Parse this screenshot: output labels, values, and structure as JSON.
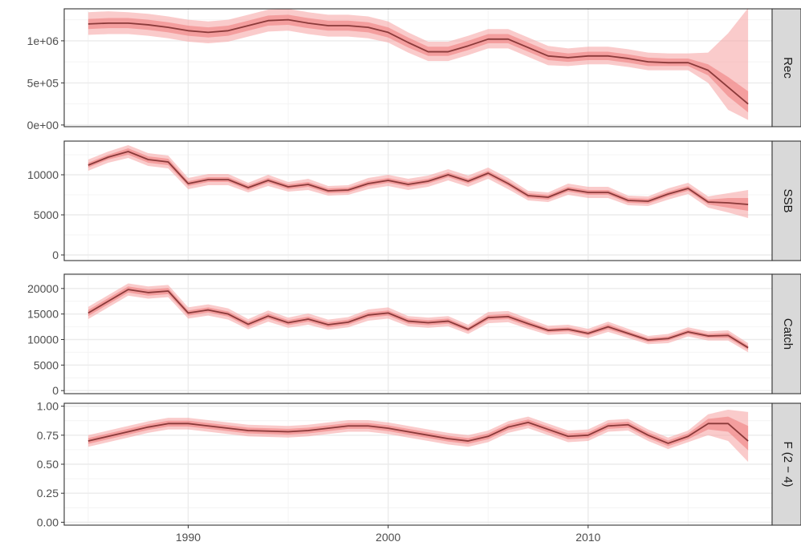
{
  "chart_data": {
    "type": "line",
    "x_ticks": [
      1990,
      2000,
      2010
    ],
    "xlim": [
      1983.8,
      2019.2
    ],
    "colors": {
      "line": "#8b3a3a",
      "ribbon_outer": "#f7a8a8",
      "ribbon_inner": "#ef7a7a",
      "grid_major": "#ebebeb",
      "grid_minor": "#f4f4f4",
      "strip_fill": "#d9d9d9",
      "border": "#333333"
    },
    "panels": [
      {
        "strip": "Rec",
        "ylim": [
          -20000,
          1380000
        ],
        "y_ticks": [
          0,
          500000,
          1000000
        ],
        "y_tick_labels": [
          "0e+00",
          "5e+05",
          "1e+06"
        ],
        "x": [
          1985,
          1986,
          1987,
          1988,
          1989,
          1990,
          1991,
          1992,
          1993,
          1994,
          1995,
          1996,
          1997,
          1998,
          1999,
          2000,
          2001,
          2002,
          2003,
          2004,
          2005,
          2006,
          2007,
          2008,
          2009,
          2010,
          2011,
          2012,
          2013,
          2014,
          2015,
          2016,
          2017,
          2018
        ],
        "y": [
          1200000,
          1210000,
          1210000,
          1190000,
          1160000,
          1120000,
          1100000,
          1120000,
          1180000,
          1240000,
          1250000,
          1210000,
          1180000,
          1180000,
          1160000,
          1100000,
          980000,
          870000,
          870000,
          940000,
          1020000,
          1020000,
          920000,
          820000,
          800000,
          820000,
          820000,
          790000,
          750000,
          740000,
          740000,
          650000,
          450000,
          250000
        ],
        "outer_lo": [
          1070000,
          1080000,
          1080000,
          1060000,
          1030000,
          990000,
          970000,
          990000,
          1050000,
          1110000,
          1120000,
          1080000,
          1050000,
          1050000,
          1030000,
          980000,
          860000,
          760000,
          760000,
          830000,
          910000,
          910000,
          810000,
          710000,
          700000,
          720000,
          720000,
          690000,
          650000,
          650000,
          650000,
          500000,
          180000,
          60000
        ],
        "outer_hi": [
          1340000,
          1350000,
          1340000,
          1320000,
          1290000,
          1250000,
          1230000,
          1250000,
          1310000,
          1370000,
          1380000,
          1340000,
          1310000,
          1310000,
          1290000,
          1230000,
          1100000,
          990000,
          990000,
          1060000,
          1140000,
          1140000,
          1040000,
          940000,
          910000,
          930000,
          930000,
          900000,
          860000,
          850000,
          850000,
          860000,
          1090000,
          1390000
        ],
        "inner_lo": [
          1140000,
          1150000,
          1150000,
          1130000,
          1100000,
          1060000,
          1040000,
          1060000,
          1120000,
          1180000,
          1190000,
          1150000,
          1120000,
          1120000,
          1100000,
          1040000,
          920000,
          820000,
          820000,
          890000,
          970000,
          970000,
          870000,
          770000,
          750000,
          770000,
          770000,
          740000,
          700000,
          700000,
          700000,
          590000,
          340000,
          150000
        ],
        "inner_hi": [
          1260000,
          1270000,
          1270000,
          1250000,
          1220000,
          1180000,
          1160000,
          1180000,
          1240000,
          1300000,
          1310000,
          1270000,
          1240000,
          1240000,
          1220000,
          1160000,
          1040000,
          930000,
          930000,
          1000000,
          1080000,
          1080000,
          980000,
          880000,
          850000,
          870000,
          870000,
          840000,
          800000,
          790000,
          790000,
          720000,
          570000,
          400000
        ]
      },
      {
        "strip": "SSB",
        "ylim": [
          -700,
          14200
        ],
        "y_ticks": [
          0,
          5000,
          10000
        ],
        "y_tick_labels": [
          "0",
          "5000",
          "10000"
        ],
        "x": [
          1985,
          1986,
          1987,
          1988,
          1989,
          1990,
          1991,
          1992,
          1993,
          1994,
          1995,
          1996,
          1997,
          1998,
          1999,
          2000,
          2001,
          2002,
          2003,
          2004,
          2005,
          2006,
          2007,
          2008,
          2009,
          2010,
          2011,
          2012,
          2013,
          2014,
          2015,
          2016,
          2017,
          2018
        ],
        "y": [
          11200,
          12200,
          12900,
          11900,
          11600,
          8900,
          9400,
          9400,
          8400,
          9300,
          8500,
          8800,
          8000,
          8100,
          8900,
          9300,
          8800,
          9200,
          10000,
          9200,
          10200,
          8900,
          7400,
          7200,
          8200,
          7800,
          7800,
          6800,
          6700,
          7600,
          8300,
          6600,
          6500,
          6300
        ],
        "outer_lo": [
          10500,
          11500,
          12100,
          11100,
          10800,
          8200,
          8700,
          8700,
          7800,
          8600,
          7900,
          8100,
          7400,
          7500,
          8200,
          8600,
          8100,
          8500,
          9300,
          8500,
          9500,
          8200,
          6800,
          6600,
          7500,
          7100,
          7100,
          6200,
          6100,
          6900,
          7600,
          5900,
          5300,
          4600
        ],
        "outer_hi": [
          11900,
          12900,
          13700,
          12700,
          12400,
          9600,
          10100,
          10100,
          9000,
          10000,
          9100,
          9500,
          8600,
          8700,
          9600,
          10000,
          9500,
          9900,
          10700,
          9900,
          10900,
          9600,
          8000,
          7800,
          8900,
          8500,
          8500,
          7400,
          7300,
          8300,
          9000,
          7300,
          7700,
          8100
        ],
        "inner_lo": [
          10900,
          11900,
          12500,
          11500,
          11200,
          8600,
          9100,
          9100,
          8100,
          9000,
          8200,
          8500,
          7700,
          7800,
          8600,
          9000,
          8500,
          8900,
          9700,
          8900,
          9900,
          8600,
          7100,
          6900,
          7900,
          7500,
          7500,
          6500,
          6400,
          7300,
          8000,
          6300,
          5900,
          5500
        ],
        "inner_hi": [
          11500,
          12500,
          13300,
          12300,
          12000,
          9200,
          9700,
          9700,
          8700,
          9600,
          8800,
          9100,
          8300,
          8400,
          9200,
          9600,
          9100,
          9500,
          10300,
          9500,
          10500,
          9200,
          7700,
          7500,
          8500,
          8100,
          8100,
          7100,
          7000,
          7900,
          8600,
          6900,
          7100,
          7100
        ]
      },
      {
        "strip": "Catch",
        "ylim": [
          -600,
          22800
        ],
        "y_ticks": [
          0,
          5000,
          10000,
          15000,
          20000
        ],
        "y_tick_labels": [
          "0",
          "5000",
          "10000",
          "15000",
          "20000"
        ],
        "x": [
          1985,
          1986,
          1987,
          1988,
          1989,
          1990,
          1991,
          1992,
          1993,
          1994,
          1995,
          1996,
          1997,
          1998,
          1999,
          2000,
          2001,
          2002,
          2003,
          2004,
          2005,
          2006,
          2007,
          2008,
          2009,
          2010,
          2011,
          2012,
          2013,
          2014,
          2015,
          2016,
          2017,
          2018
        ],
        "y": [
          15200,
          17500,
          19800,
          19200,
          19500,
          15200,
          15800,
          15000,
          13000,
          14600,
          13300,
          14000,
          12900,
          13400,
          14800,
          15200,
          13600,
          13300,
          13600,
          12000,
          14300,
          14500,
          13100,
          11800,
          12000,
          11200,
          12500,
          11200,
          9900,
          10200,
          11500,
          10700,
          10800,
          8400
        ],
        "outer_lo": [
          14000,
          16300,
          18600,
          18000,
          18300,
          14100,
          14700,
          13900,
          12000,
          13500,
          12300,
          12900,
          11900,
          12400,
          13700,
          14100,
          12600,
          12300,
          12600,
          11100,
          13200,
          13400,
          12100,
          10900,
          11100,
          10300,
          11500,
          10300,
          9100,
          9300,
          10600,
          9800,
          9800,
          7500
        ],
        "outer_hi": [
          16400,
          18700,
          21000,
          20400,
          20700,
          16300,
          16900,
          16100,
          14000,
          15700,
          14300,
          15100,
          13900,
          14400,
          15900,
          16300,
          14600,
          14300,
          14600,
          12900,
          15400,
          15600,
          14100,
          12700,
          12900,
          12100,
          13500,
          12100,
          10700,
          11100,
          12400,
          11600,
          11800,
          9300
        ],
        "inner_lo": [
          14600,
          16900,
          19200,
          18600,
          18900,
          14700,
          15300,
          14500,
          12500,
          14100,
          12800,
          13500,
          12400,
          12900,
          14300,
          14700,
          13100,
          12800,
          13100,
          11600,
          13800,
          14000,
          12600,
          11400,
          11600,
          10800,
          12000,
          10800,
          9500,
          9800,
          11100,
          10300,
          10300,
          8000
        ],
        "inner_hi": [
          15800,
          18100,
          20400,
          19800,
          20100,
          15700,
          16300,
          15500,
          13500,
          15100,
          13800,
          14500,
          13400,
          13900,
          15300,
          15700,
          14100,
          13800,
          14100,
          12400,
          14800,
          15000,
          13600,
          12200,
          12400,
          11600,
          13000,
          11600,
          10300,
          10600,
          11900,
          11100,
          11300,
          8800
        ]
      },
      {
        "strip": "F (2 − 4)",
        "ylim": [
          -0.025,
          1.025
        ],
        "y_ticks": [
          0,
          0.25,
          0.5,
          0.75,
          1
        ],
        "y_tick_labels": [
          "0.00",
          "0.25",
          "0.50",
          "0.75",
          "1.00"
        ],
        "x": [
          1985,
          1986,
          1987,
          1988,
          1989,
          1990,
          1991,
          1992,
          1993,
          1994,
          1995,
          1996,
          1997,
          1998,
          1999,
          2000,
          2001,
          2002,
          2003,
          2004,
          2005,
          2006,
          2007,
          2008,
          2009,
          2010,
          2011,
          2012,
          2013,
          2014,
          2015,
          2016,
          2017,
          2018
        ],
        "y": [
          0.7,
          0.74,
          0.78,
          0.82,
          0.85,
          0.85,
          0.83,
          0.81,
          0.79,
          0.785,
          0.78,
          0.79,
          0.81,
          0.83,
          0.83,
          0.81,
          0.78,
          0.75,
          0.72,
          0.7,
          0.74,
          0.82,
          0.86,
          0.8,
          0.74,
          0.75,
          0.83,
          0.84,
          0.75,
          0.68,
          0.74,
          0.85,
          0.85,
          0.7
        ],
        "outer_lo": [
          0.65,
          0.69,
          0.73,
          0.77,
          0.8,
          0.8,
          0.78,
          0.76,
          0.74,
          0.735,
          0.73,
          0.74,
          0.76,
          0.78,
          0.78,
          0.76,
          0.73,
          0.7,
          0.67,
          0.65,
          0.69,
          0.77,
          0.81,
          0.75,
          0.69,
          0.7,
          0.78,
          0.79,
          0.7,
          0.63,
          0.69,
          0.75,
          0.7,
          0.52
        ],
        "outer_hi": [
          0.75,
          0.79,
          0.83,
          0.87,
          0.9,
          0.9,
          0.88,
          0.86,
          0.84,
          0.835,
          0.83,
          0.84,
          0.86,
          0.88,
          0.88,
          0.86,
          0.83,
          0.8,
          0.77,
          0.75,
          0.79,
          0.87,
          0.91,
          0.85,
          0.79,
          0.8,
          0.88,
          0.89,
          0.8,
          0.73,
          0.79,
          0.93,
          0.97,
          0.95
        ],
        "inner_lo": [
          0.675,
          0.715,
          0.755,
          0.795,
          0.825,
          0.825,
          0.805,
          0.785,
          0.765,
          0.76,
          0.755,
          0.765,
          0.785,
          0.805,
          0.805,
          0.785,
          0.755,
          0.725,
          0.695,
          0.675,
          0.715,
          0.795,
          0.835,
          0.775,
          0.715,
          0.725,
          0.805,
          0.815,
          0.725,
          0.655,
          0.715,
          0.8,
          0.78,
          0.62
        ],
        "inner_hi": [
          0.725,
          0.765,
          0.805,
          0.845,
          0.875,
          0.875,
          0.855,
          0.835,
          0.815,
          0.81,
          0.805,
          0.815,
          0.835,
          0.855,
          0.855,
          0.835,
          0.805,
          0.775,
          0.745,
          0.725,
          0.765,
          0.845,
          0.885,
          0.825,
          0.765,
          0.775,
          0.855,
          0.865,
          0.775,
          0.705,
          0.765,
          0.89,
          0.91,
          0.83
        ]
      }
    ]
  }
}
